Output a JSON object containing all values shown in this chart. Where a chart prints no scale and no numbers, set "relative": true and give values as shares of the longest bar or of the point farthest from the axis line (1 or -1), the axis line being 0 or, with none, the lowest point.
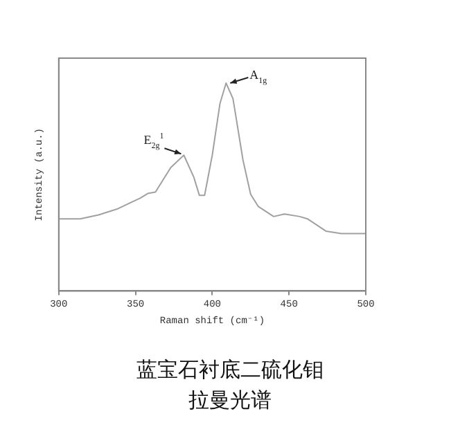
{
  "chart_data": {
    "type": "line",
    "title": "蓝宝石衬底二硫化钼拉曼光谱",
    "xlabel": "Raman shift (cm⁻¹)",
    "ylabel": "Intensity (a.u.)",
    "relative": true,
    "tick_labels": "x",
    "grid": false,
    "legend": false,
    "marker": "none",
    "xlim": [
      300,
      500
    ],
    "xticks": [
      300,
      350,
      400,
      450,
      500
    ],
    "series": [
      {
        "color": "#a0a0a0",
        "x": [
          300,
          314,
          326,
          338,
          346,
          353,
          358,
          363,
          373,
          381.5,
          388,
          391.6,
          395,
          400,
          405,
          409,
          413.5,
          420,
          425,
          430,
          440,
          447,
          457,
          462,
          474,
          484,
          500
        ],
        "values": [
          0.347,
          0.347,
          0.366,
          0.394,
          0.422,
          0.446,
          0.469,
          0.476,
          0.594,
          0.653,
          0.547,
          0.46,
          0.46,
          0.653,
          0.901,
          1,
          0.925,
          0.63,
          0.465,
          0.406,
          0.358,
          0.37,
          0.358,
          0.347,
          0.288,
          0.276,
          0.276
        ]
      }
    ],
    "annotations": [
      {
        "text": "E$_{2g}$$^{1}$",
        "x": 381.5,
        "y": 0.653
      },
      {
        "text": "A$_{1g}$",
        "x": 409,
        "y": 1
      }
    ]
  }
}
